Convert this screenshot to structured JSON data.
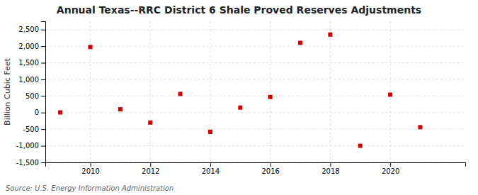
{
  "chart_data": {
    "type": "scatter",
    "title": "Annual Texas--RRC District 6 Shale Proved Reserves Adjustments",
    "ylabel": "Billion Cubic Feet",
    "annotations": [
      "Source: U.S. Energy Information Administration"
    ],
    "x": [
      2009,
      2010,
      2011,
      2012,
      2013,
      2014,
      2015,
      2016,
      2017,
      2018,
      2019,
      2020,
      2021
    ],
    "values": [
      5,
      1975,
      100,
      -300,
      560,
      -580,
      150,
      470,
      2100,
      2350,
      -1000,
      540,
      -440
    ],
    "color": "#cc0000",
    "marker": "square",
    "xlim": [
      2008.5,
      2022.5
    ],
    "xticks": [
      2010,
      2012,
      2014,
      2016,
      2018,
      2020
    ],
    "ylim": [
      -1500,
      2750
    ],
    "yticks": [
      {
        "value": -1500,
        "label": "-1,500"
      },
      {
        "value": -1000,
        "label": "-1,000"
      },
      -500,
      0,
      500,
      {
        "value": 1000,
        "label": "1,000"
      },
      {
        "value": 1500,
        "label": "1,500"
      },
      {
        "value": 2000,
        "label": "2,000"
      },
      {
        "value": 2500,
        "label": "2,500"
      }
    ],
    "grid": true
  }
}
